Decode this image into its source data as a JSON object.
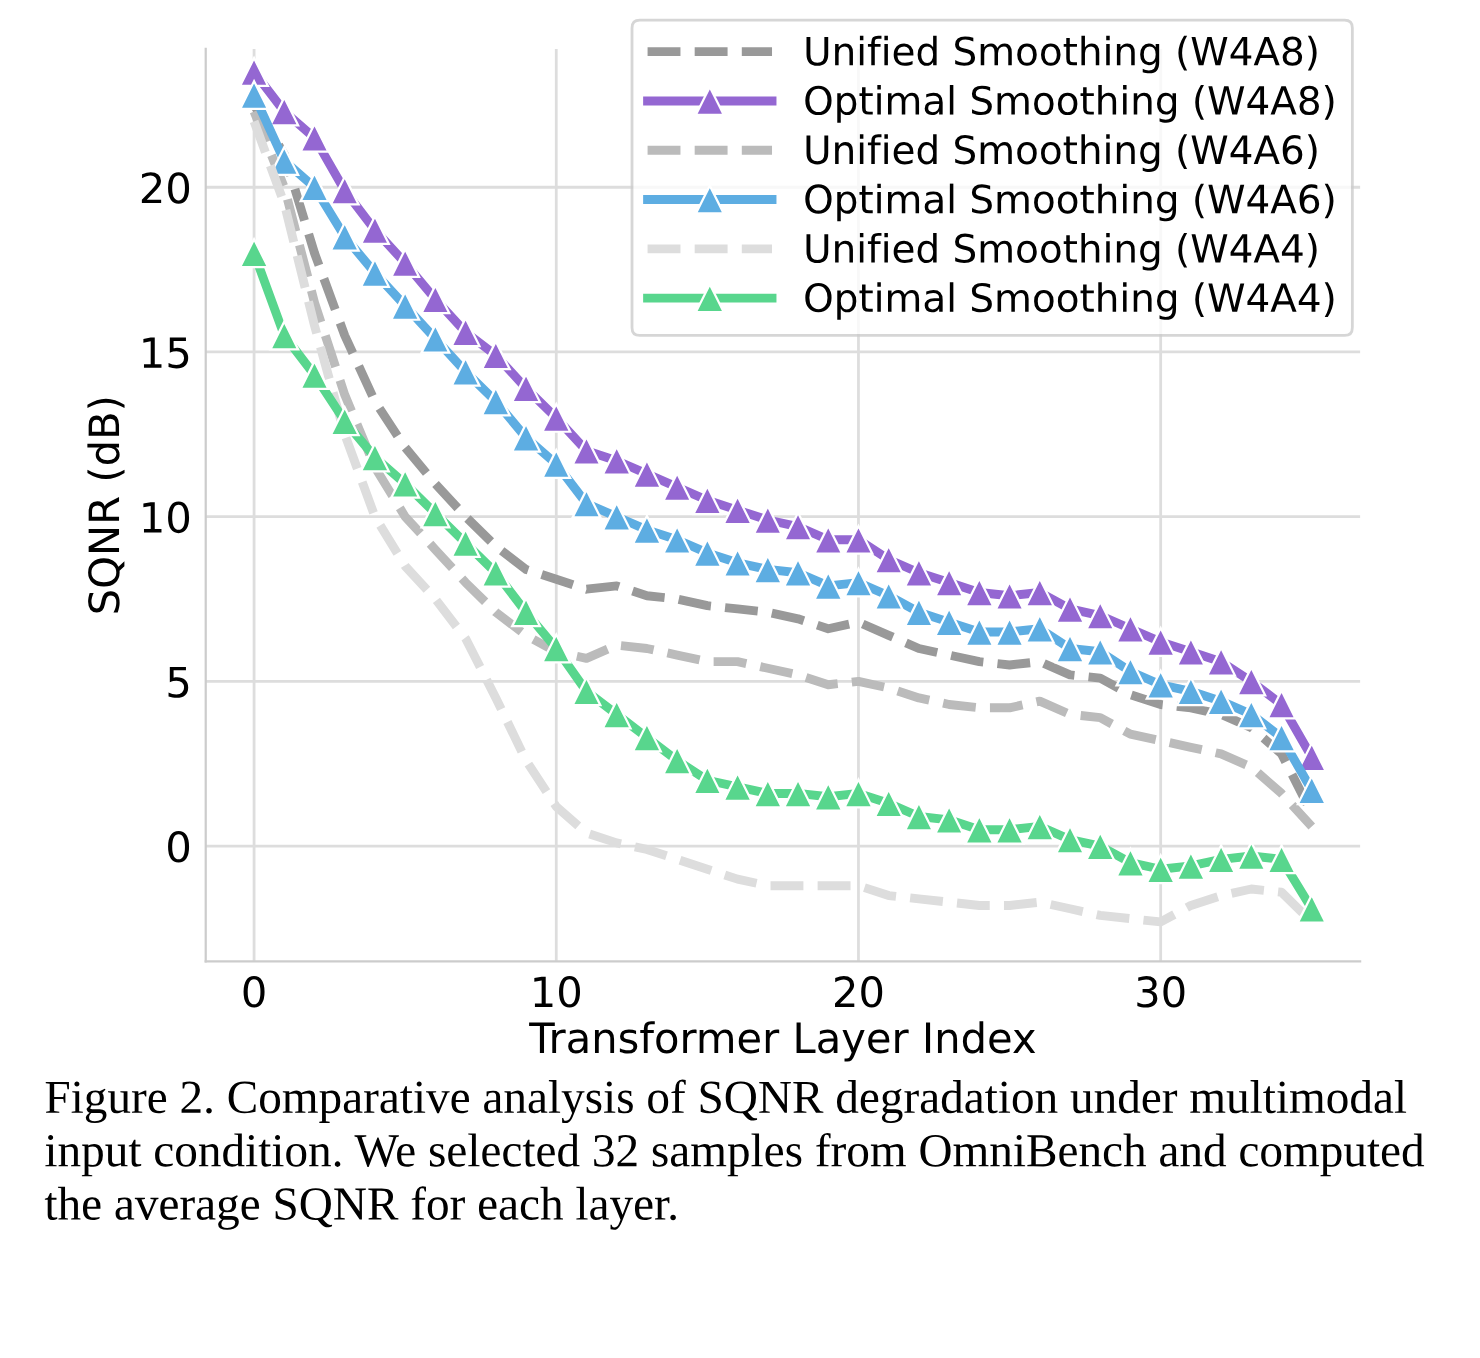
{
  "chart_data": {
    "type": "line",
    "xlabel": "Transformer Layer Index",
    "ylabel": "SQNR (dB)",
    "x": [
      0,
      1,
      2,
      3,
      4,
      5,
      6,
      7,
      8,
      9,
      10,
      11,
      12,
      13,
      14,
      15,
      16,
      17,
      18,
      19,
      20,
      21,
      22,
      23,
      24,
      25,
      26,
      27,
      28,
      29,
      30,
      31,
      32,
      33,
      34,
      35
    ],
    "xlim": [
      -1.6,
      36.6
    ],
    "ylim": [
      -3.5,
      24.2
    ],
    "xticks": [
      0,
      10,
      20,
      30
    ],
    "yticks": [
      0,
      5,
      10,
      15,
      20
    ],
    "grid": true,
    "legend": "top right",
    "series": [
      {
        "name": "Unified Smoothing (W4A8)",
        "color": "#999999",
        "line_style": "dashed",
        "marker": "none",
        "values": [
          22.5,
          21.0,
          18.0,
          15.5,
          13.5,
          12.1,
          11.0,
          10.0,
          9.1,
          8.4,
          8.1,
          7.8,
          7.9,
          7.6,
          7.5,
          7.3,
          7.2,
          7.1,
          6.9,
          6.6,
          6.8,
          6.4,
          6.0,
          5.8,
          5.6,
          5.5,
          5.6,
          5.2,
          5.1,
          4.6,
          4.3,
          4.2,
          4.0,
          3.6,
          2.8,
          1.0
        ]
      },
      {
        "name": "Optimal Smoothing (W4A8)",
        "color": "#9467d2",
        "line_style": "solid",
        "marker": "triangle",
        "values": [
          23.5,
          22.3,
          21.5,
          19.9,
          18.7,
          17.7,
          16.6,
          15.6,
          14.9,
          13.9,
          13.0,
          12.0,
          11.7,
          11.3,
          10.9,
          10.5,
          10.2,
          9.9,
          9.7,
          9.3,
          9.3,
          8.7,
          8.3,
          8.0,
          7.7,
          7.6,
          7.7,
          7.2,
          7.0,
          6.6,
          6.2,
          5.9,
          5.6,
          5.0,
          4.3,
          2.7
        ]
      },
      {
        "name": "Unified Smoothing (W4A6)",
        "color": "#bbbbbb",
        "line_style": "dashed",
        "marker": "none",
        "values": [
          22.3,
          20.0,
          16.5,
          13.7,
          11.5,
          10.0,
          9.0,
          8.0,
          7.1,
          6.4,
          5.9,
          5.7,
          6.1,
          6.0,
          5.8,
          5.6,
          5.6,
          5.4,
          5.2,
          4.9,
          5.0,
          4.8,
          4.5,
          4.3,
          4.2,
          4.2,
          4.4,
          4.0,
          3.9,
          3.4,
          3.2,
          3.0,
          2.8,
          2.4,
          1.6,
          0.6
        ]
      },
      {
        "name": "Optimal Smoothing (W4A6)",
        "color": "#5dade2",
        "line_style": "solid",
        "marker": "triangle",
        "values": [
          22.8,
          20.8,
          20.0,
          18.5,
          17.4,
          16.4,
          15.4,
          14.4,
          13.5,
          12.4,
          11.6,
          10.4,
          10.0,
          9.6,
          9.3,
          8.9,
          8.6,
          8.4,
          8.3,
          7.9,
          8.0,
          7.6,
          7.1,
          6.8,
          6.5,
          6.5,
          6.6,
          6.0,
          5.9,
          5.3,
          4.9,
          4.7,
          4.4,
          4.0,
          3.3,
          1.7
        ]
      },
      {
        "name": "Unified Smoothing (W4A4)",
        "color": "#dddddd",
        "line_style": "dashed",
        "marker": "none",
        "values": [
          22.0,
          19.5,
          15.8,
          12.5,
          10.0,
          8.5,
          7.5,
          6.3,
          4.5,
          2.6,
          1.2,
          0.4,
          0.1,
          -0.1,
          -0.4,
          -0.7,
          -1.0,
          -1.2,
          -1.2,
          -1.2,
          -1.2,
          -1.5,
          -1.6,
          -1.7,
          -1.8,
          -1.8,
          -1.7,
          -1.9,
          -2.1,
          -2.2,
          -2.3,
          -1.8,
          -1.5,
          -1.3,
          -1.4,
          -2.3
        ]
      },
      {
        "name": "Optimal Smoothing (W4A4)",
        "color": "#58d68d",
        "line_style": "solid",
        "marker": "triangle",
        "values": [
          18.0,
          15.5,
          14.3,
          12.9,
          11.8,
          11.0,
          10.1,
          9.2,
          8.3,
          7.1,
          6.0,
          4.7,
          4.0,
          3.3,
          2.6,
          2.0,
          1.8,
          1.6,
          1.6,
          1.5,
          1.6,
          1.3,
          0.9,
          0.8,
          0.5,
          0.5,
          0.6,
          0.2,
          0.0,
          -0.5,
          -0.7,
          -0.6,
          -0.4,
          -0.3,
          -0.4,
          -1.9
        ]
      }
    ],
    "annotations": [
      "Figure 2. Comparative analysis of SQNR degradation under multimodal input condition. We selected 32 samples from OmniBench and computed the average SQNR for each layer."
    ]
  }
}
